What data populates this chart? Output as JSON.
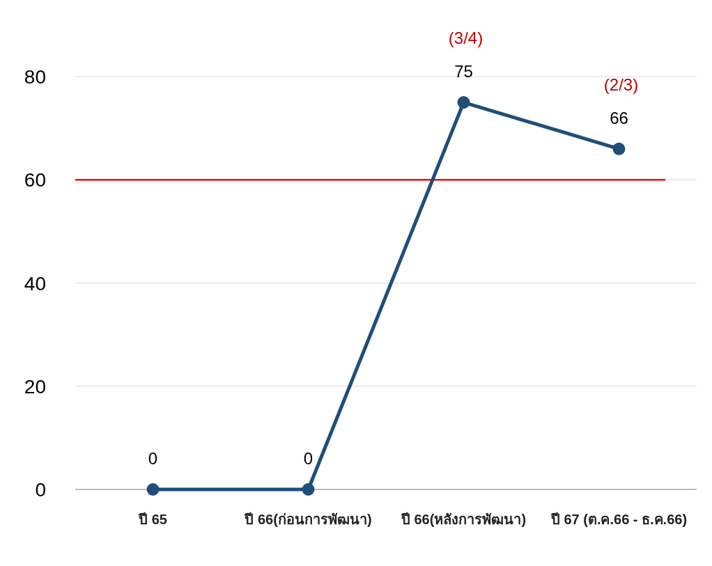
{
  "chart_data": {
    "type": "line",
    "categories": [
      "ปี 65",
      "ปี 66(ก่อนการพัฒนา)",
      "ปี 66(หลังการพัฒนา)",
      "ปี 67 (ต.ค.66 - ธ.ค.66)"
    ],
    "series": [
      {
        "color": "#1f4e79",
        "values": [
          0,
          0,
          75,
          66
        ]
      }
    ],
    "marker": "circle",
    "ylim": [
      0,
      80
    ],
    "yticks": [
      0,
      20,
      40,
      60,
      80
    ],
    "grid": "y",
    "data_labels": true,
    "ref_lines": [
      {
        "axis": "y",
        "value": 60,
        "color": "#ff0000"
      }
    ],
    "annotations": [
      "(3/4)",
      "(2/3)"
    ]
  }
}
